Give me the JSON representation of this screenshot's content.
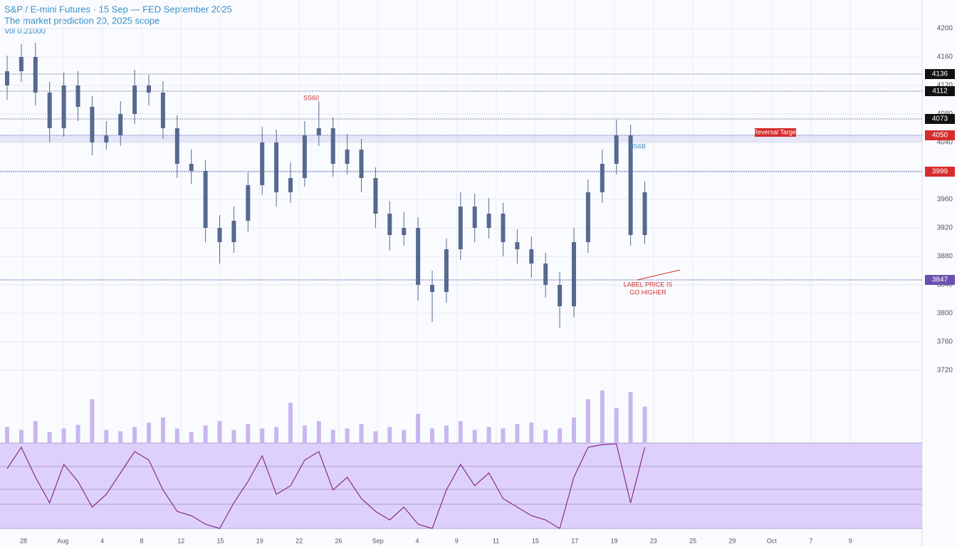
{
  "chart_data": {
    "type": "candlestick",
    "title": "S&P / E-mini Futures · 15 Sep — FED September 2025",
    "subtitle": "The market prediction 20, 2025 scope",
    "note": "Vol 0.21000",
    "ylim": [
      3700,
      4240
    ],
    "yticks": [
      3720,
      3760,
      3800,
      3840,
      3880,
      3920,
      3960,
      4000,
      4040,
      4080,
      4120,
      4160,
      4200
    ],
    "grid": true,
    "candle_color": "#56698f",
    "series": [
      {
        "name": "Price",
        "open": [
          4120,
          4140,
          4160,
          4110,
          4060,
          4120,
          4090,
          4040,
          4050,
          4080,
          4120,
          4110,
          4060,
          4010,
          4000,
          3920,
          3900,
          3930,
          3980,
          4040,
          3970,
          3990,
          4050,
          4060,
          4010,
          4030,
          3990,
          3940,
          3910,
          3920,
          3840,
          3830,
          3890,
          3950,
          3920,
          3940,
          3900,
          3890,
          3870,
          3840,
          3810,
          3900,
          3970,
          4010,
          4050,
          3910
        ],
        "high": [
          4162,
          4178,
          4180,
          4125,
          4138,
          4140,
          4105,
          4070,
          4098,
          4142,
          4135,
          4126,
          4078,
          4030,
          4015,
          3938,
          3950,
          3998,
          4062,
          4058,
          4012,
          4070,
          4098,
          4075,
          4052,
          4045,
          4005,
          3958,
          3942,
          3935,
          3860,
          3905,
          3970,
          3968,
          3962,
          3955,
          3918,
          3908,
          3885,
          3858,
          3920,
          3988,
          4030,
          4072,
          4065,
          3985
        ],
        "low": [
          4100,
          4125,
          4092,
          4040,
          4048,
          4070,
          4022,
          4030,
          4035,
          4066,
          4092,
          4045,
          3990,
          3982,
          3900,
          3870,
          3885,
          3915,
          3966,
          3950,
          3955,
          3978,
          4035,
          3992,
          3995,
          3970,
          3920,
          3888,
          3895,
          3818,
          3788,
          3815,
          3875,
          3900,
          3905,
          3880,
          3870,
          3850,
          3822,
          3780,
          3795,
          3885,
          3955,
          3995,
          3895,
          3898
        ],
        "close": [
          4140,
          4160,
          4110,
          4060,
          4120,
          4090,
          4040,
          4050,
          4080,
          4120,
          4110,
          4060,
          4010,
          4000,
          3920,
          3900,
          3930,
          3980,
          4040,
          3970,
          3990,
          4050,
          4060,
          4010,
          4030,
          3990,
          3940,
          3910,
          3920,
          3840,
          3830,
          3890,
          3950,
          3920,
          3940,
          3900,
          3890,
          3870,
          3840,
          3810,
          3900,
          3970,
          4010,
          4050,
          3910,
          3970
        ]
      }
    ],
    "volume": {
      "ylim": [
        0,
        80
      ],
      "color": "#c8b6f0",
      "values": [
        22,
        18,
        30,
        15,
        20,
        25,
        60,
        18,
        16,
        22,
        28,
        35,
        20,
        15,
        24,
        30,
        18,
        26,
        20,
        22,
        55,
        24,
        30,
        18,
        20,
        26,
        16,
        22,
        18,
        40,
        20,
        24,
        30,
        18,
        22,
        20,
        26,
        28,
        18,
        20,
        35,
        60,
        72,
        48,
        70,
        50
      ]
    },
    "oscillator": {
      "ylim": [
        0,
        100
      ],
      "color": "#8b2a8e",
      "fill": "#ddd1fb",
      "values": [
        70,
        95,
        60,
        30,
        75,
        55,
        25,
        40,
        65,
        90,
        80,
        45,
        20,
        15,
        5,
        0,
        30,
        55,
        85,
        40,
        50,
        80,
        90,
        45,
        60,
        35,
        20,
        10,
        25,
        5,
        0,
        45,
        75,
        50,
        65,
        35,
        25,
        15,
        10,
        0,
        60,
        95,
        98,
        99,
        30,
        95
      ]
    },
    "levels": [
      {
        "value": 4136,
        "color": "#111111"
      },
      {
        "value": 4112,
        "color": "#111111"
      },
      {
        "value": 4073,
        "color": "#111111"
      },
      {
        "value": 4050,
        "color": "#d62c2c"
      },
      {
        "value": 3999,
        "color": "#d62c2c"
      },
      {
        "value": 3847,
        "color": "#6a4fb0"
      }
    ],
    "annotations": [
      "SS60",
      "8S6B",
      "LABEL PRICE IS",
      "GO HIGHER",
      "Reversal Target"
    ],
    "xlabels": [
      "28",
      "Aug",
      "4",
      "8",
      "12",
      "15",
      "19",
      "22",
      "26",
      "Sep",
      "4",
      "9",
      "11",
      "15",
      "17",
      "19",
      "23",
      "25",
      "29",
      "Oct",
      "7",
      "9"
    ]
  }
}
